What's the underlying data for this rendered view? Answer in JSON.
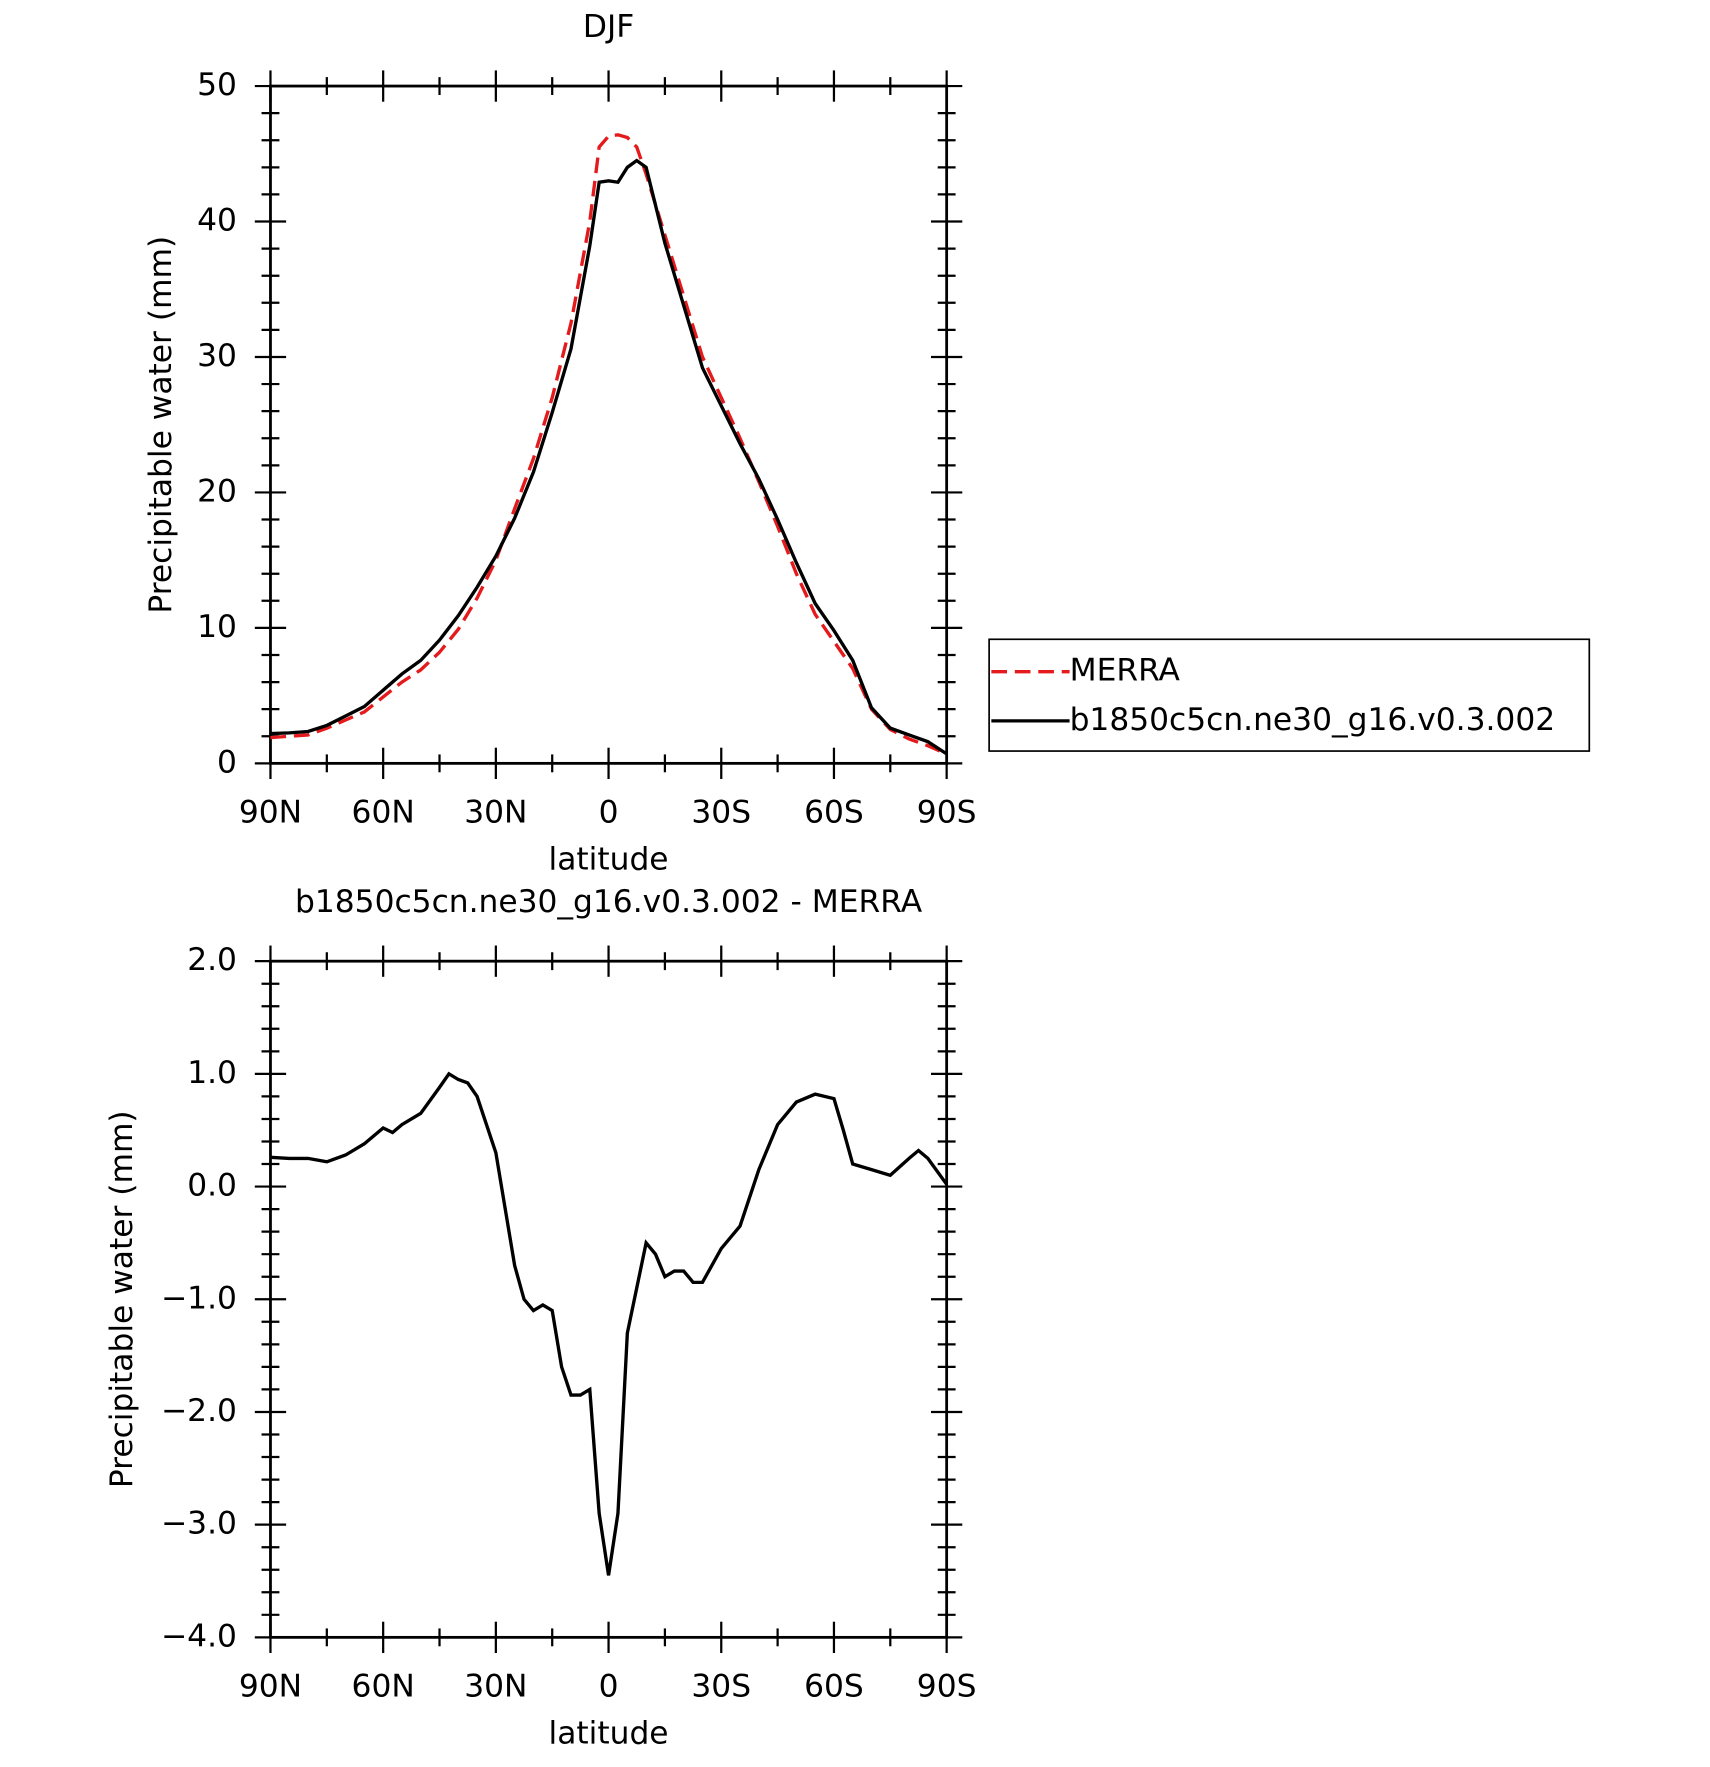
{
  "chart_data": [
    {
      "type": "line",
      "title": "DJF",
      "xlabel": "latitude",
      "ylabel": "Precipitable water (mm)",
      "x": [
        90,
        85,
        80,
        75,
        70,
        65,
        60,
        55,
        50,
        45,
        40,
        35,
        30,
        25,
        20,
        15,
        10,
        5,
        2.5,
        0,
        -2.5,
        -5,
        -7.5,
        -10,
        -15,
        -20,
        -25,
        -30,
        -35,
        -40,
        -45,
        -50,
        -55,
        -60,
        -65,
        -70,
        -75,
        -80,
        -85,
        -90
      ],
      "series": [
        {
          "name": "MERRA",
          "color": "#e41a1c",
          "dash": "dashed",
          "values": [
            1.9,
            2.0,
            2.1,
            2.6,
            3.2,
            3.8,
            4.9,
            6.0,
            6.9,
            8.2,
            9.9,
            12.2,
            15.0,
            18.8,
            22.5,
            27.0,
            32.5,
            40.0,
            45.5,
            46.3,
            46.4,
            46.2,
            45.5,
            43.5,
            39.0,
            34.5,
            30.0,
            27.0,
            24.0,
            20.8,
            17.5,
            14.0,
            11.0,
            9.0,
            7.0,
            4.0,
            2.5,
            1.8,
            1.3,
            0.7
          ]
        },
        {
          "name": "b1850c5cn.ne30_g16.v0.3.002",
          "color": "#000000",
          "dash": "solid",
          "values": [
            2.2,
            2.25,
            2.35,
            2.8,
            3.5,
            4.2,
            5.4,
            6.6,
            7.6,
            9.1,
            10.9,
            13.0,
            15.3,
            18.1,
            21.5,
            25.9,
            30.6,
            38.2,
            42.9,
            43.0,
            42.9,
            44.0,
            44.5,
            44.0,
            38.4,
            33.8,
            29.2,
            26.4,
            23.6,
            21.0,
            18.0,
            14.8,
            11.8,
            9.8,
            7.6,
            4.1,
            2.6,
            2.1,
            1.6,
            0.7
          ]
        }
      ],
      "xlim": [
        90,
        -90
      ],
      "xticks": [
        {
          "value": 90,
          "label": "90N"
        },
        {
          "value": 60,
          "label": "60N"
        },
        {
          "value": 30,
          "label": "30N"
        },
        0,
        {
          "value": -30,
          "label": "30S"
        },
        {
          "value": -60,
          "label": "60S"
        },
        {
          "value": -90,
          "label": "90S"
        }
      ],
      "xminorticks": [
        75,
        45,
        15,
        -15,
        -45,
        -75
      ],
      "ylim": [
        0,
        50
      ],
      "yticks": [
        0,
        10,
        20,
        30,
        40,
        50
      ],
      "yminorticks": [
        2,
        4,
        6,
        8,
        12,
        14,
        16,
        18,
        22,
        24,
        26,
        28,
        32,
        34,
        36,
        38,
        42,
        44,
        46,
        48
      ],
      "legend": "outside-right"
    },
    {
      "type": "line",
      "title": "b1850c5cn.ne30_g16.v0.3.002 - MERRA",
      "xlabel": "latitude",
      "ylabel": "Precipitable water (mm)",
      "x": [
        90,
        85,
        80,
        75,
        70,
        65,
        60,
        57.5,
        55,
        50,
        45,
        42.5,
        40,
        37.5,
        35,
        30,
        27.5,
        25,
        22.5,
        20,
        17.5,
        15,
        12.5,
        10,
        7.5,
        5,
        2.5,
        0,
        -2.5,
        -5,
        -7.5,
        -10,
        -12.5,
        -15,
        -17.5,
        -20,
        -22.5,
        -25,
        -30,
        -35,
        -40,
        -45,
        -50,
        -55,
        -60,
        -62.5,
        -65,
        -70,
        -75,
        -80,
        -82.5,
        -85,
        -90
      ],
      "series": [
        {
          "color": "#000000",
          "dash": "solid",
          "values": [
            0.26,
            0.25,
            0.25,
            0.22,
            0.28,
            0.38,
            0.52,
            0.48,
            0.55,
            0.65,
            0.88,
            1.0,
            0.95,
            0.92,
            0.8,
            0.3,
            -0.2,
            -0.7,
            -1.0,
            -1.1,
            -1.05,
            -1.1,
            -1.6,
            -1.85,
            -1.85,
            -1.8,
            -2.9,
            -3.45,
            -2.9,
            -1.3,
            -0.9,
            -0.5,
            -0.6,
            -0.8,
            -0.75,
            -0.75,
            -0.85,
            -0.85,
            -0.55,
            -0.35,
            0.15,
            0.55,
            0.75,
            0.82,
            0.78,
            0.5,
            0.2,
            0.15,
            0.1,
            0.25,
            0.32,
            0.25,
            0.02
          ]
        }
      ],
      "xlim": [
        90,
        -90
      ],
      "xticks": [
        {
          "value": 90,
          "label": "90N"
        },
        {
          "value": 60,
          "label": "60N"
        },
        {
          "value": 30,
          "label": "30N"
        },
        0,
        {
          "value": -30,
          "label": "30S"
        },
        {
          "value": -60,
          "label": "60S"
        },
        {
          "value": -90,
          "label": "90S"
        }
      ],
      "xminorticks": [
        75,
        45,
        15,
        -15,
        -45,
        -75
      ],
      "ylim": [
        -4,
        2
      ],
      "yticks": [
        {
          "value": -4,
          "label": "−4.0"
        },
        {
          "value": -3,
          "label": "−3.0"
        },
        {
          "value": -2,
          "label": "−2.0"
        },
        {
          "value": -1,
          "label": "−1.0"
        },
        {
          "value": 0,
          "label": "0.0"
        },
        {
          "value": 1,
          "label": "1.0"
        },
        {
          "value": 2,
          "label": "2.0"
        }
      ],
      "yminorticks": [
        -3.8,
        -3.6,
        -3.4,
        -3.2,
        -2.8,
        -2.6,
        -2.4,
        -2.2,
        -1.8,
        -1.6,
        -1.4,
        -1.2,
        -0.8,
        -0.6,
        -0.4,
        -0.2,
        0.2,
        0.4,
        0.6,
        0.8,
        1.2,
        1.4,
        1.6,
        1.8
      ]
    }
  ]
}
